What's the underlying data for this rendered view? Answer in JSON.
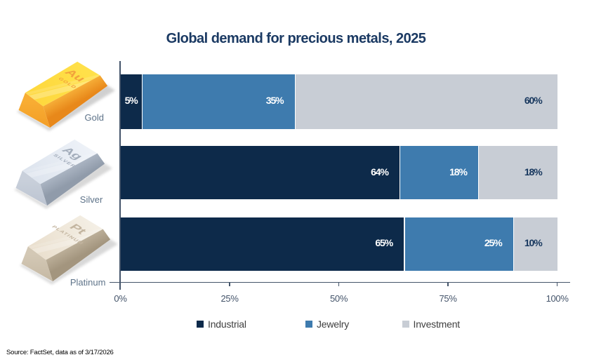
{
  "title": {
    "text": "Global demand for precious metals, 2025",
    "color": "#1b3a63"
  },
  "chart_data": {
    "type": "bar",
    "stacked": true,
    "orientation": "horizontal",
    "title": "Global demand for precious metals, 2025",
    "categories": [
      "Gold",
      "Silver",
      "Platinum"
    ],
    "series": [
      {
        "name": "Industrial",
        "color": "#0d2a4a",
        "values": [
          5,
          64,
          65
        ]
      },
      {
        "name": "Jewelry",
        "color": "#3e7bae",
        "values": [
          35,
          18,
          25
        ]
      },
      {
        "name": "Investment",
        "color": "#c8cdd5",
        "values": [
          60,
          18,
          10
        ]
      }
    ],
    "data_labels": [
      "5%",
      "35%",
      "60%",
      "64%",
      "18%",
      "18%",
      "65%",
      "25%",
      "10%"
    ],
    "x_ticks": [
      {
        "label": "0%",
        "value": 0
      },
      {
        "label": "25%",
        "value": 25
      },
      {
        "label": "50%",
        "value": 50
      },
      {
        "label": "75%",
        "value": 75
      },
      {
        "label": "100%",
        "value": 100
      }
    ],
    "xlim": [
      0,
      100
    ],
    "grid": false,
    "legend_position": "bottom",
    "label_color_on_dark": "#ffffff",
    "label_color_on_light": "#17375e",
    "axis_color": "#44546a",
    "tick_label_color": "#44546a",
    "legend_text_color": "#404040"
  },
  "icons": [
    {
      "name": "gold-ingot-icon",
      "symbol": "Au",
      "engraving": "GOLD",
      "caption": "Gold",
      "palette": {
        "top1": "#ffe14b",
        "top2": "#fed73c",
        "left1": "#f8ad33",
        "left2": "#f39e27",
        "right1": "#f6ad37",
        "right2": "#e8881a",
        "text": "#f2a23c",
        "shadow": "#cccccc"
      }
    },
    {
      "name": "silver-ingot-icon",
      "symbol": "Ag",
      "engraving": "SILVER",
      "caption": "Silver",
      "palette": {
        "top1": "#eef2f8",
        "top2": "#dce3ed",
        "left1": "#c9d0db",
        "left2": "#bcc4d1",
        "right1": "#aab4c2",
        "right2": "#909baa",
        "text": "#a3adbb",
        "shadow": "#d4d4d4"
      }
    },
    {
      "name": "platinum-ingot-icon",
      "symbol": "Pt",
      "engraving": "PLATINUM",
      "caption": "Platinum",
      "palette": {
        "top1": "#f4efe5",
        "top2": "#e9decc",
        "left1": "#d3c8b5",
        "left2": "#c5b8a3",
        "right1": "#bbae98",
        "right2": "#a3957e",
        "text": "#c3b5a0",
        "shadow": "#d4d4d4"
      }
    }
  ],
  "caption_color": "#5e7389",
  "source_note": {
    "text": "Source: FactSet, data as of 3/17/2026",
    "color": "#404040"
  }
}
